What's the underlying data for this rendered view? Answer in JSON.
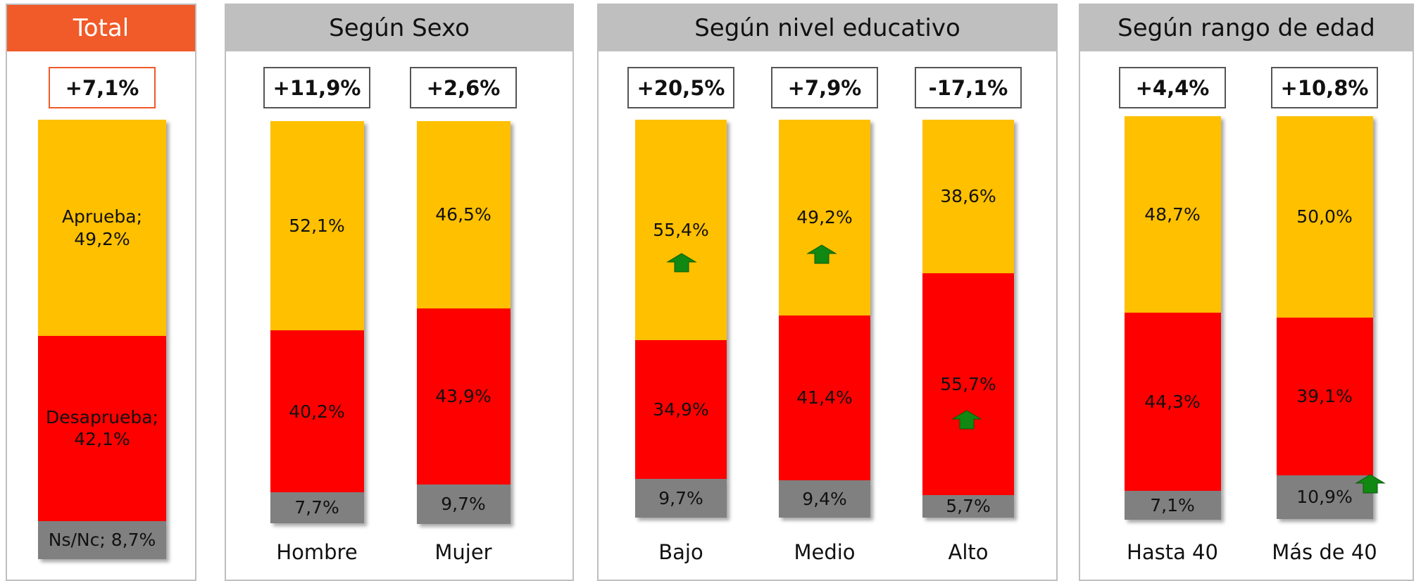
{
  "chart_data": [
    {
      "type": "bar",
      "stacked": true,
      "title": "Total",
      "annotations": [
        "+7,1%"
      ],
      "categories": [
        null
      ],
      "ylim": [
        0,
        100
      ],
      "series": [
        {
          "color": "#ffc000",
          "values": [
            49.2
          ],
          "value_labels": [
            "Aprueba; 49,2%"
          ]
        },
        {
          "color": "#ff0000",
          "values": [
            42.1
          ],
          "value_labels": [
            "Desaprueba; 42,1%"
          ]
        },
        {
          "color": "#808080",
          "values": [
            8.7
          ],
          "value_labels": [
            "Ns/Nc; 8,7%"
          ]
        }
      ]
    },
    {
      "type": "bar",
      "stacked": true,
      "title": "Según Sexo",
      "annotations": [
        "+11,9%",
        "+2,6%"
      ],
      "categories": [
        "Hombre",
        "Mujer"
      ],
      "ylim": [
        0,
        100
      ],
      "series": [
        {
          "color": "#ffc000",
          "values": [
            52.1,
            46.5
          ],
          "value_labels": [
            "52,1%",
            "46,5%"
          ]
        },
        {
          "color": "#ff0000",
          "values": [
            40.2,
            43.9
          ],
          "value_labels": [
            "40,2%",
            "43,9%"
          ]
        },
        {
          "color": "#808080",
          "values": [
            7.7,
            9.7
          ],
          "value_labels": [
            "7,7%",
            "9,7%"
          ]
        }
      ]
    },
    {
      "type": "bar",
      "stacked": true,
      "title": "Según nivel educativo",
      "annotations": [
        "+20,5%",
        "+7,9%",
        "-17,1%"
      ],
      "categories": [
        "Bajo",
        "Medio",
        "Alto"
      ],
      "ylim": [
        0,
        100
      ],
      "series": [
        {
          "color": "#ffc000",
          "values": [
            55.4,
            49.2,
            38.6
          ],
          "value_labels": [
            "55,4%",
            "49,2%",
            "38,6%"
          ]
        },
        {
          "color": "#ff0000",
          "values": [
            34.9,
            41.4,
            55.7
          ],
          "value_labels": [
            "34,9%",
            "41,4%",
            "55,7%"
          ]
        },
        {
          "color": "#808080",
          "values": [
            9.7,
            9.4,
            5.7
          ],
          "value_labels": [
            "9,7%",
            "9,4%",
            "5,7%"
          ]
        }
      ]
    },
    {
      "type": "bar",
      "stacked": true,
      "title": "Según rango de edad",
      "annotations": [
        "+4,4%",
        "+10,8%"
      ],
      "categories": [
        "Hasta 40",
        "Más de 40"
      ],
      "ylim": [
        0,
        100
      ],
      "series": [
        {
          "color": "#ffc000",
          "values": [
            48.7,
            50.0
          ],
          "value_labels": [
            "48,7%",
            "50,0%"
          ]
        },
        {
          "color": "#ff0000",
          "values": [
            44.3,
            39.1
          ],
          "value_labels": [
            "44,3%",
            "39,1%"
          ]
        },
        {
          "color": "#808080",
          "values": [
            7.1,
            10.9
          ],
          "value_labels": [
            "7,1%",
            "10,9%"
          ]
        }
      ]
    }
  ]
}
